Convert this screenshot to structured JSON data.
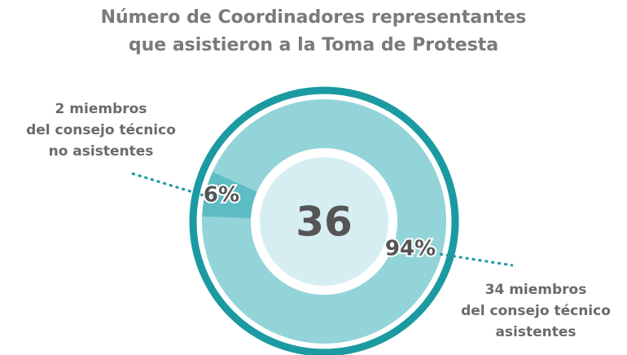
{
  "chart_data": {
    "type": "pie",
    "title": [
      "Número de Coordinadores representantes",
      "que asistieron a la Toma de Protesta"
    ],
    "total": 36,
    "categories": [
      [
        "34 miembros",
        "del consejo técnico",
        "asistentes"
      ],
      [
        "2 miembros",
        "del consejo técnico",
        "no asistentes"
      ]
    ],
    "values": [
      94,
      6
    ],
    "value_labels": [
      "94%",
      "6%"
    ],
    "colors": [
      "#93d4d9",
      "#5dbcc4"
    ]
  }
}
